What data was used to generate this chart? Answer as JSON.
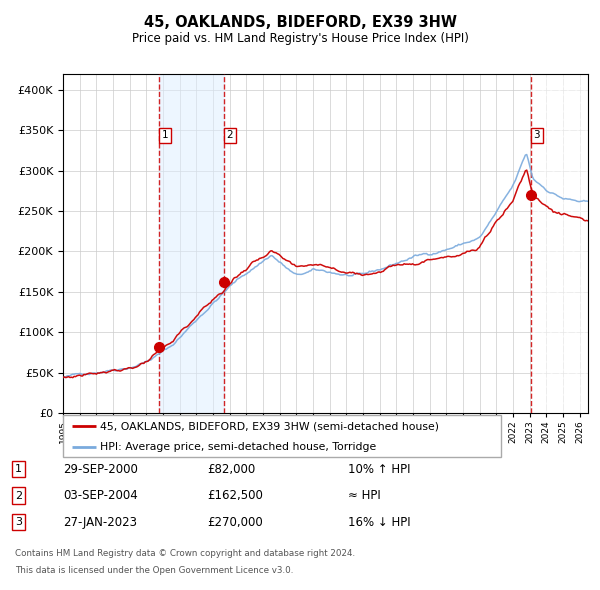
{
  "title": "45, OAKLANDS, BIDEFORD, EX39 3HW",
  "subtitle": "Price paid vs. HM Land Registry's House Price Index (HPI)",
  "legend_line1": "45, OAKLANDS, BIDEFORD, EX39 3HW (semi-detached house)",
  "legend_line2": "HPI: Average price, semi-detached house, Torridge",
  "transactions": [
    {
      "num": 1,
      "date": "29-SEP-2000",
      "price": 82000,
      "rel": "10% ↑ HPI",
      "year": 2000.75
    },
    {
      "num": 2,
      "date": "03-SEP-2004",
      "price": 162500,
      "rel": "≈ HPI",
      "year": 2004.67
    },
    {
      "num": 3,
      "date": "27-JAN-2023",
      "price": 270000,
      "rel": "16% ↓ HPI",
      "year": 2023.07
    }
  ],
  "footer1": "Contains HM Land Registry data © Crown copyright and database right 2024.",
  "footer2": "This data is licensed under the Open Government Licence v3.0.",
  "hpi_color": "#7aaadd",
  "price_color": "#cc0000",
  "dot_color": "#cc0000",
  "vline_color": "#cc0000",
  "shade_color": "#ddeeff",
  "ylim": [
    0,
    420000
  ],
  "xlim_start": 1995.0,
  "xlim_end": 2026.5
}
